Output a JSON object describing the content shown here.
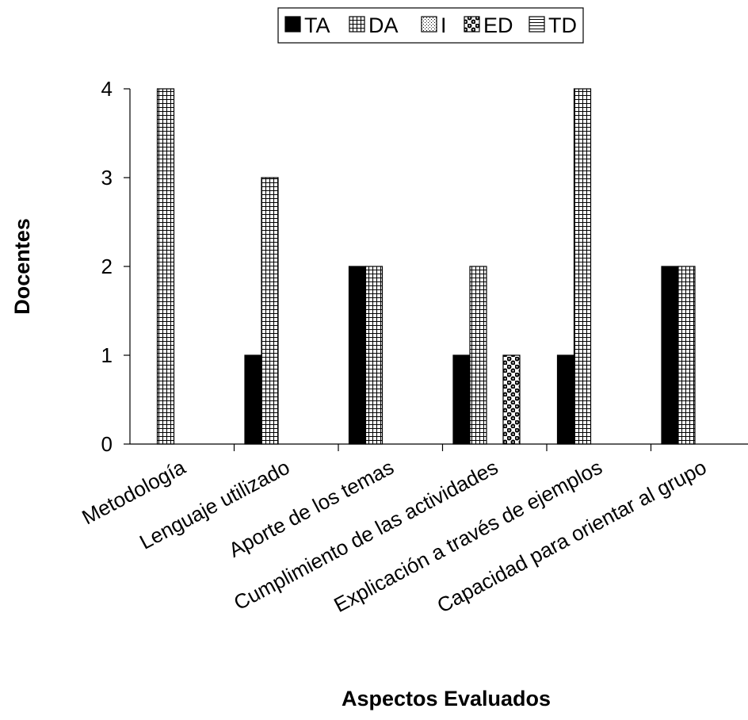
{
  "chart_data": {
    "type": "bar",
    "categories": [
      "Metodología",
      "Lenguaje utilizado",
      "Aporte de los temas",
      "Cumplimiento de las actividades",
      "Explicación a través de ejemplos",
      "Capacidad para orientar al grupo"
    ],
    "series": [
      {
        "name": "TA",
        "values": [
          0,
          1,
          2,
          1,
          1,
          2
        ],
        "pattern": "solid"
      },
      {
        "name": "DA",
        "values": [
          4,
          3,
          2,
          2,
          4,
          2
        ],
        "pattern": "grid"
      },
      {
        "name": "I",
        "values": [
          0,
          0,
          0,
          0,
          0,
          0
        ],
        "pattern": "dots"
      },
      {
        "name": "ED",
        "values": [
          0,
          0,
          0,
          1,
          0,
          0
        ],
        "pattern": "checker"
      },
      {
        "name": "TD",
        "values": [
          0,
          0,
          0,
          0,
          0,
          0
        ],
        "pattern": "hlines"
      }
    ],
    "title": "",
    "xlabel": "Aspectos Evaluados",
    "ylabel": "Docentes",
    "ylim": [
      0,
      4
    ],
    "yticks": [
      0,
      1,
      2,
      3,
      4
    ],
    "grid": false,
    "legend_position": "top-center"
  }
}
